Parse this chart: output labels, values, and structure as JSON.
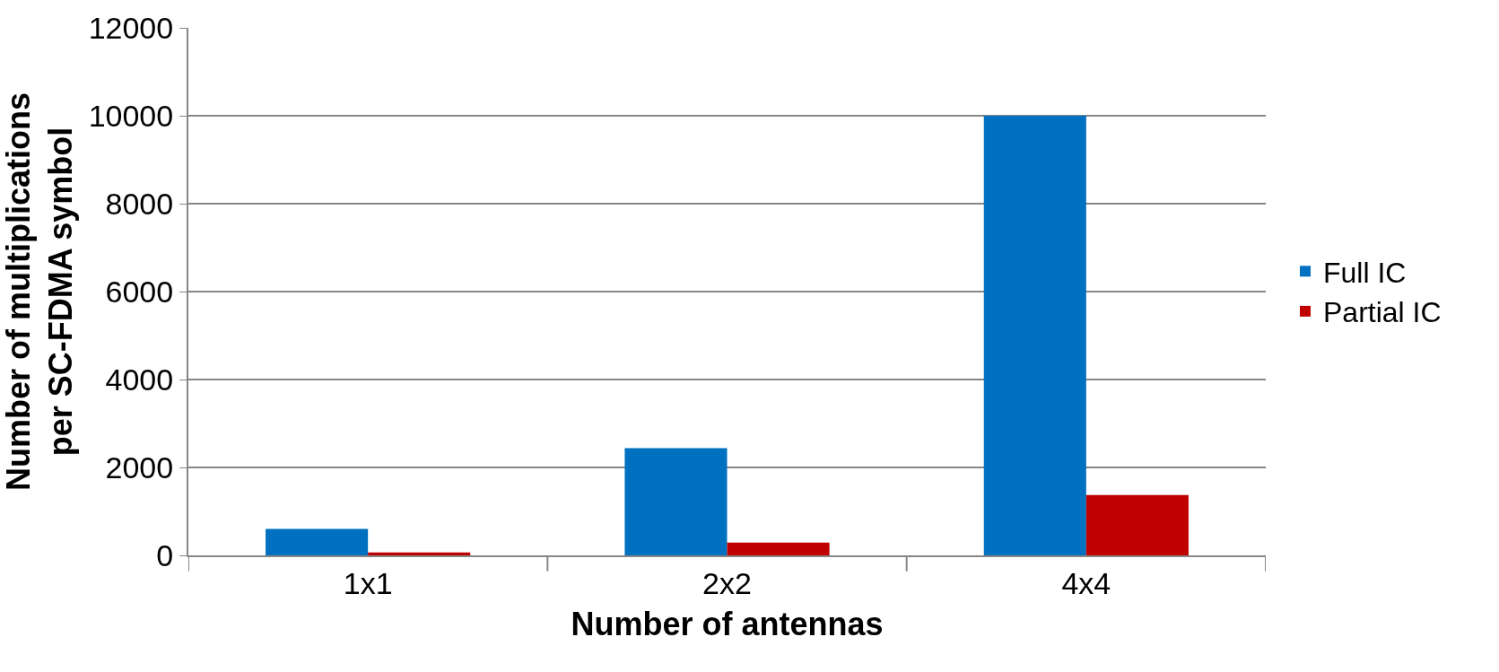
{
  "chart_data": {
    "type": "bar",
    "xlabel": "Number of antennas",
    "ylabel": "Number of multiplications\nper SC-FDMA symbol",
    "categories": [
      "1x1",
      "2x2",
      "4x4"
    ],
    "series": [
      {
        "name": "Full IC",
        "color": "#0070c0",
        "values": [
          600,
          2440,
          10000
        ]
      },
      {
        "name": "Partial IC",
        "color": "#c00000",
        "values": [
          64,
          290,
          1370
        ]
      }
    ],
    "ylim": [
      0,
      12000
    ],
    "yticks": [
      0,
      2000,
      4000,
      6000,
      8000,
      10000,
      12000
    ],
    "grid": "y",
    "legend": "right"
  }
}
